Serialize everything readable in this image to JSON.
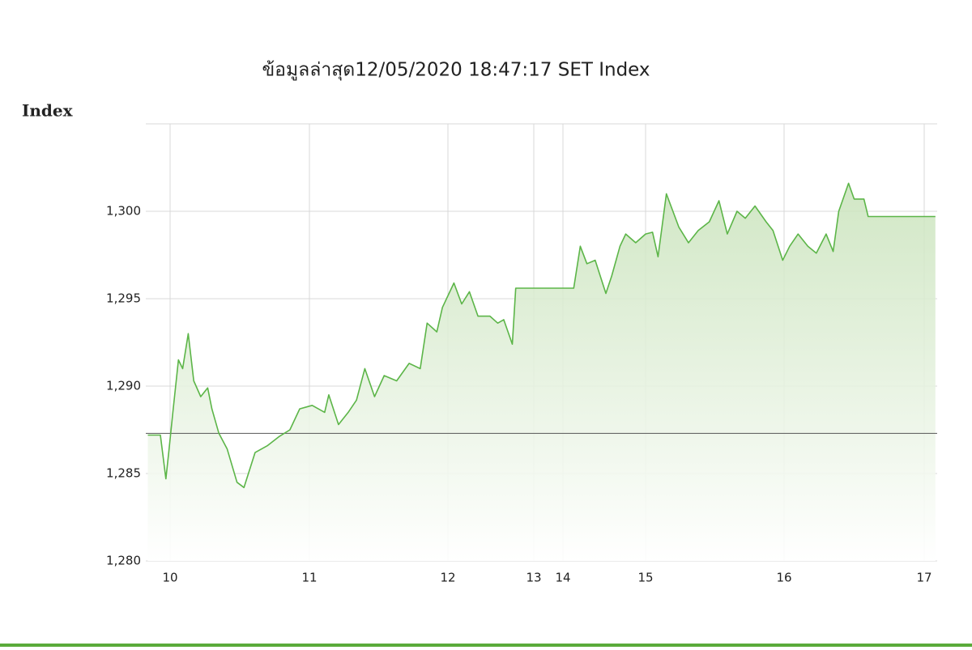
{
  "chart_data": {
    "type": "line",
    "title": "ข้อมูลล่าสุด12/05/2020 18:47:17  SET Index",
    "y_label": "Index",
    "x": [
      9.84,
      9.93,
      9.97,
      9.99,
      10.02,
      10.06,
      10.09,
      10.13,
      10.17,
      10.22,
      10.27,
      10.3,
      10.35,
      10.41,
      10.48,
      10.53,
      10.61,
      10.7,
      10.78,
      10.86,
      10.93,
      11.02,
      11.11,
      11.14,
      11.21,
      11.28,
      11.34,
      11.4,
      11.47,
      11.54,
      11.63,
      11.72,
      11.8,
      11.85,
      11.92,
      11.96,
      12.07,
      12.16,
      12.25,
      12.35,
      12.49,
      12.58,
      12.65,
      12.75,
      12.79,
      14.13,
      14.21,
      14.29,
      14.39,
      14.52,
      14.59,
      14.69,
      14.76,
      14.88,
      15.0,
      15.05,
      15.09,
      15.15,
      15.24,
      15.31,
      15.38,
      15.46,
      15.53,
      15.59,
      15.66,
      15.72,
      15.79,
      15.87,
      15.92,
      15.99,
      16.04,
      16.1,
      16.17,
      16.23,
      16.3,
      16.35,
      16.39,
      16.46,
      16.5,
      16.57,
      16.6,
      17.08
    ],
    "values": [
      1287.2,
      1287.2,
      1284.7,
      1286.2,
      1288.5,
      1291.5,
      1291.0,
      1293.0,
      1290.3,
      1289.4,
      1289.9,
      1288.7,
      1287.3,
      1286.4,
      1284.5,
      1284.2,
      1286.2,
      1286.6,
      1287.1,
      1287.5,
      1288.7,
      1288.9,
      1288.5,
      1289.5,
      1287.8,
      1288.5,
      1289.2,
      1291.0,
      1289.4,
      1290.6,
      1290.3,
      1291.3,
      1291.0,
      1293.6,
      1293.1,
      1294.5,
      1295.9,
      1294.7,
      1295.4,
      1294.0,
      1294.0,
      1293.6,
      1293.8,
      1292.4,
      1295.6,
      1295.6,
      1298.0,
      1297.0,
      1297.2,
      1295.3,
      1296.3,
      1298.0,
      1298.7,
      1298.2,
      1298.7,
      1298.8,
      1297.4,
      1301.0,
      1299.1,
      1298.2,
      1298.9,
      1299.4,
      1300.6,
      1298.7,
      1300.0,
      1299.6,
      1300.3,
      1299.4,
      1298.9,
      1297.2,
      1298.0,
      1298.7,
      1298.0,
      1297.6,
      1298.7,
      1297.7,
      1300.0,
      1301.6,
      1300.7,
      1300.7,
      1299.7,
      1299.7
    ],
    "color": "#5cb548",
    "prior_close": 1287.3,
    "prior_close_color": "#555555",
    "xlim": [
      9.83,
      17.09
    ],
    "xticks": [
      10,
      11,
      12,
      13,
      14,
      15,
      16,
      17
    ],
    "ylim": [
      1280,
      1305
    ],
    "yticks": [
      {
        "value": 1280,
        "label": "1,280"
      },
      {
        "value": 1285,
        "label": "1,285"
      },
      {
        "value": 1290,
        "label": "1,290"
      },
      {
        "value": 1295,
        "label": "1,295"
      },
      {
        "value": 1300,
        "label": "1,300"
      }
    ],
    "grid": true
  }
}
